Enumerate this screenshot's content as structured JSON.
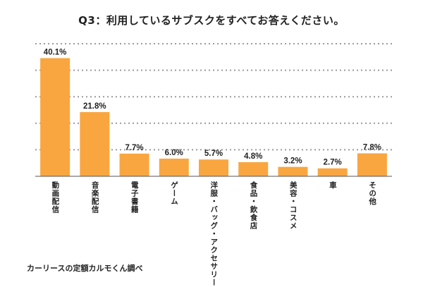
{
  "chart_data": {
    "type": "bar",
    "title": "Q3：利用しているサブスクをすべてお答えください。",
    "categories": [
      "動画配信",
      "音楽配信",
      "電子書籍",
      "ゲーム",
      "洋服・バッグ・アクセサリー",
      "食品・飲食店",
      "美容・コスメ",
      "車",
      "その他"
    ],
    "values": [
      40.1,
      21.8,
      7.7,
      6.0,
      5.7,
      4.8,
      3.2,
      2.7,
      7.8
    ],
    "value_labels": [
      "40.1%",
      "21.8%",
      "7.7%",
      "6.0%",
      "5.7%",
      "4.8%",
      "3.2%",
      "2.7%",
      "7.8%"
    ],
    "ylim": [
      0,
      45
    ],
    "grid": "dotted horizontal",
    "bar_color": "#F9A640"
  },
  "source_note": "カーリースの定額カルモくん調べ"
}
